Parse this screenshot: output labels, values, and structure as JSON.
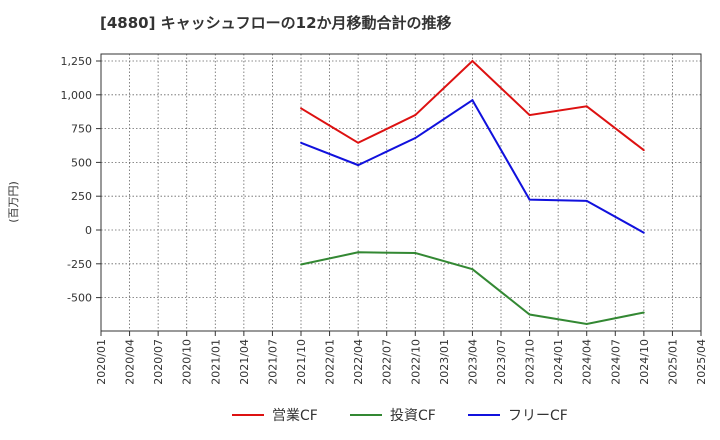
{
  "chart_data": {
    "type": "line",
    "title": "[4880]  キャッシュフローの12か月移動合計の推移",
    "ylabel": "(百万円)",
    "xlabel": "",
    "x": [
      "2020/01",
      "2020/04",
      "2020/07",
      "2020/10",
      "2021/01",
      "2021/04",
      "2021/07",
      "2021/10",
      "2022/01",
      "2022/04",
      "2022/07",
      "2022/10",
      "2023/01",
      "2023/04",
      "2023/07",
      "2023/10",
      "2024/01",
      "2024/04",
      "2024/07",
      "2024/10",
      "2025/01",
      "2025/04"
    ],
    "ylim": [
      -750,
      1300
    ],
    "yticks": [
      1250,
      1000,
      750,
      500,
      250,
      0,
      -250,
      -500
    ],
    "ytick_labels": [
      "1,250",
      "1,000",
      "750",
      "500",
      "250",
      "0",
      "-250",
      "-500"
    ],
    "grid": true,
    "legend_position": "bottom",
    "series": [
      {
        "name": "営業CF",
        "color": "#dd1111",
        "points": [
          [
            "2021/10",
            900
          ],
          [
            "2022/04",
            645
          ],
          [
            "2022/10",
            850
          ],
          [
            "2023/04",
            1250
          ],
          [
            "2023/10",
            850
          ],
          [
            "2024/04",
            915
          ],
          [
            "2024/10",
            590
          ]
        ]
      },
      {
        "name": "投資CF",
        "color": "#338833",
        "points": [
          [
            "2021/10",
            -255
          ],
          [
            "2022/04",
            -165
          ],
          [
            "2022/10",
            -170
          ],
          [
            "2023/04",
            -290
          ],
          [
            "2023/10",
            -625
          ],
          [
            "2024/04",
            -695
          ],
          [
            "2024/10",
            -610
          ]
        ]
      },
      {
        "name": "フリーCF",
        "color": "#1111dd",
        "points": [
          [
            "2021/10",
            645
          ],
          [
            "2022/04",
            480
          ],
          [
            "2022/10",
            680
          ],
          [
            "2023/04",
            960
          ],
          [
            "2023/10",
            225
          ],
          [
            "2024/04",
            215
          ],
          [
            "2024/10",
            -20
          ]
        ]
      }
    ]
  }
}
